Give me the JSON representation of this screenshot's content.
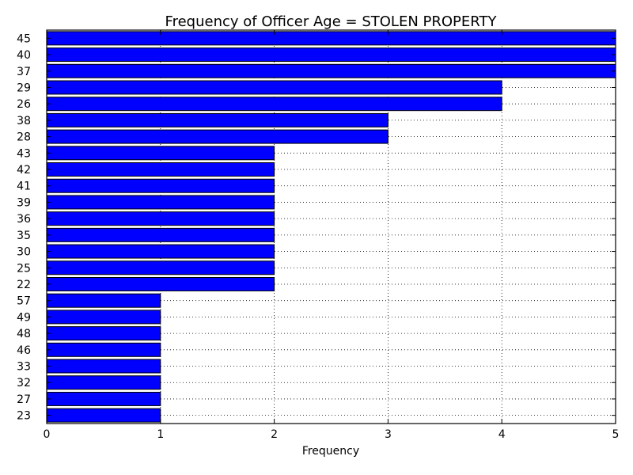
{
  "chart_data": {
    "type": "bar",
    "orientation": "horizontal",
    "title": "Frequency of Officer Age = STOLEN PROPERTY",
    "xlabel": "Frequency",
    "ylabel": "",
    "xlim": [
      0,
      5
    ],
    "xticks": [
      0,
      1,
      2,
      3,
      4,
      5
    ],
    "grid": true,
    "bar_color": "#0000ff",
    "categories": [
      "45",
      "40",
      "37",
      "29",
      "26",
      "38",
      "28",
      "43",
      "42",
      "41",
      "39",
      "36",
      "35",
      "30",
      "25",
      "22",
      "57",
      "49",
      "48",
      "46",
      "33",
      "32",
      "27",
      "23"
    ],
    "values": [
      5,
      5,
      5,
      4,
      4,
      3,
      3,
      2,
      2,
      2,
      2,
      2,
      2,
      2,
      2,
      2,
      1,
      1,
      1,
      1,
      1,
      1,
      1,
      1
    ]
  }
}
